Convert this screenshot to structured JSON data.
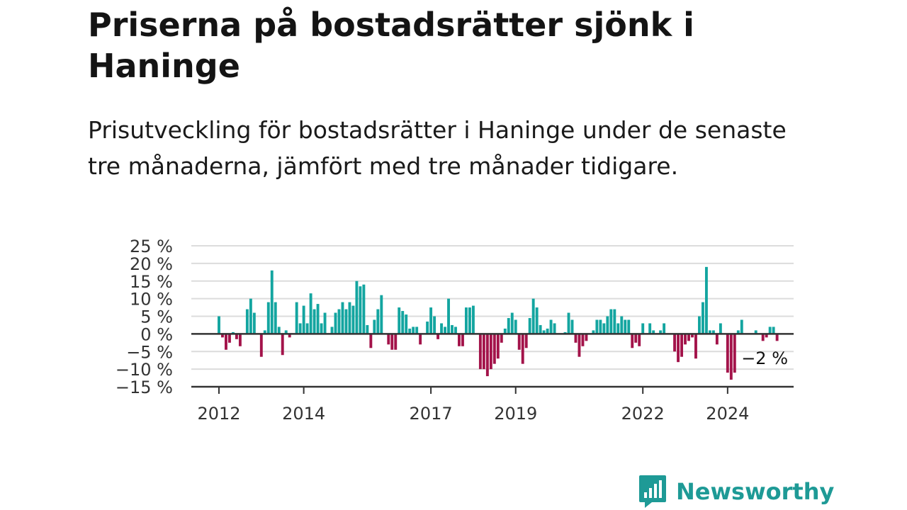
{
  "title": "Priserna på bostadsrätter sjönk i Haninge",
  "subtitle": "Prisutveckling för bostadsrätter i Haninge under de senaste tre månaderna, jämfört med tre månader tidigare.",
  "brand": {
    "name": "Newsworthy",
    "color": "#1e9a96"
  },
  "colors": {
    "positive": "#13a5a0",
    "negative": "#a3134a",
    "grid": "#dcdcdc",
    "axis": "#333333"
  },
  "chart_data": {
    "type": "bar",
    "ylim": [
      -15,
      25
    ],
    "y_ticks": [
      -15,
      -10,
      -5,
      0,
      5,
      10,
      15,
      20,
      25
    ],
    "y_tick_labels": [
      "−15 %",
      "−10 %",
      "−5 %",
      "0 %",
      "5 %",
      "10 %",
      "15 %",
      "20 %",
      "25 %"
    ],
    "x_tick_labels": [
      "2012",
      "2014",
      "2017",
      "2019",
      "2022",
      "2024"
    ],
    "end_label": "−2 %",
    "grid": true,
    "series": [
      {
        "values": [
          5,
          -1,
          -4.5,
          -2.5,
          0.5,
          -1.5,
          -3.5,
          0,
          7,
          10,
          6,
          0,
          -6.5,
          1,
          9,
          18,
          9,
          2,
          -6,
          1,
          -1,
          0,
          9,
          3,
          8,
          3,
          11.5,
          7,
          8.5,
          3,
          6,
          0,
          2,
          6,
          7,
          9,
          7,
          9,
          8,
          15,
          13.5,
          14,
          2.5,
          -4,
          4,
          7,
          11,
          0,
          -3,
          -4.5,
          -4.5,
          7.5,
          6.5,
          5.5,
          1.5,
          2,
          2,
          -3,
          0,
          3.5,
          7.5,
          5,
          -1.5,
          3,
          2,
          10,
          2.5,
          2,
          -3.5,
          -3.5,
          7.5,
          7.5,
          8,
          0,
          -10,
          -10,
          -12,
          -10,
          -8.5,
          -7,
          -2.5,
          1.5,
          4.5,
          6,
          4,
          -4.5,
          -8.5,
          -4,
          4.5,
          10,
          7.5,
          2.5,
          1,
          1.5,
          4,
          3,
          0,
          0,
          0.5,
          6,
          4,
          -2.5,
          -6.5,
          -3.5,
          -2,
          0,
          1,
          4,
          4,
          3,
          5,
          7,
          7,
          3,
          5,
          4,
          4,
          -4,
          -2.5,
          -3.5,
          3,
          0,
          3,
          1,
          0,
          1,
          3,
          0,
          0,
          -5,
          -8,
          -6.5,
          -3,
          -2,
          -1,
          -7,
          5,
          9,
          19,
          1,
          1,
          -3,
          3,
          0,
          -11,
          -13,
          -11,
          1,
          4,
          0,
          0,
          0,
          1,
          0,
          -2,
          -1,
          2,
          2,
          -2
        ]
      }
    ]
  }
}
